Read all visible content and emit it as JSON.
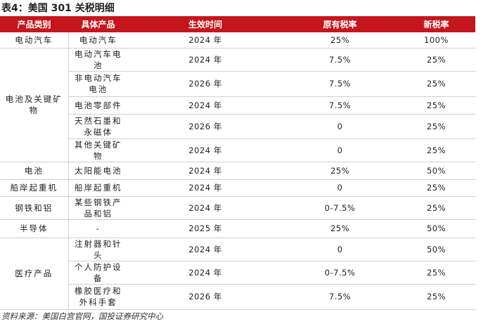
{
  "title": "表4：美国 301 关税明细",
  "table": {
    "header": [
      "产品类别",
      "具体产品",
      "生效时间",
      "原有税率",
      "新税率"
    ],
    "groups": [
      {
        "category": "电动汽车",
        "items": [
          [
            "电动汽车",
            "2024 年",
            "25%",
            "100%"
          ]
        ]
      },
      {
        "category": "电池及关键矿物",
        "items": [
          [
            "电动汽车电池",
            "2024 年",
            "7.5%",
            "25%"
          ],
          [
            "非电动汽车电池",
            "2026 年",
            "7.5%",
            "25%"
          ],
          [
            "电池零部件",
            "2024 年",
            "7.5%",
            "25%"
          ],
          [
            "天然石墨和永磁体",
            "2026 年",
            "0",
            "25%"
          ],
          [
            "其他关键矿物",
            "2024 年",
            "0",
            "25%"
          ]
        ]
      },
      {
        "category": "电池",
        "items": [
          [
            "太阳能电池",
            "2024 年",
            "25%",
            "50%"
          ]
        ]
      },
      {
        "category": "船岸起重机",
        "items": [
          [
            "船岸起重机",
            "2024 年",
            "0",
            "25%"
          ]
        ]
      },
      {
        "category": "钢铁和铝",
        "items": [
          [
            "某些钢铁产品和铝",
            "2024 年",
            "0-7.5%",
            "25%"
          ]
        ]
      },
      {
        "category": "半导体",
        "items": [
          [
            "-",
            "2025 年",
            "25%",
            "50%"
          ]
        ]
      },
      {
        "category": "医疗产品",
        "items": [
          [
            "注射器和针头",
            "2024 年",
            "0",
            "50%"
          ],
          [
            "个人防护设备",
            "2024 年",
            "0-7.5%",
            "25%"
          ],
          [
            "橡胶医疗和外科手套",
            "2026 年",
            "7.5%",
            "25%"
          ]
        ]
      }
    ]
  },
  "source": "资料来源：美国白宫官网，国投证券研究中心"
}
